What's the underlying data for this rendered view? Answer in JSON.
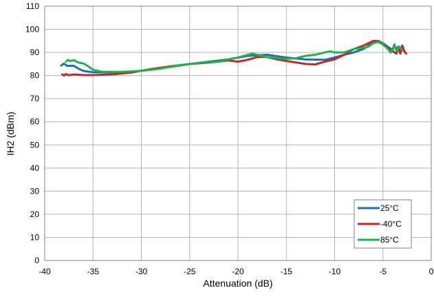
{
  "chart_data": {
    "type": "line",
    "title": "",
    "xlabel": "Attenuation (dB)",
    "ylabel": "IH2 (dBm)",
    "xlim": [
      -40,
      0
    ],
    "ylim": [
      0,
      110
    ],
    "x_ticks": [
      -40,
      -35,
      -30,
      -25,
      -20,
      -15,
      -10,
      -5,
      0
    ],
    "y_ticks": [
      0,
      10,
      20,
      30,
      40,
      50,
      60,
      70,
      80,
      90,
      100,
      110
    ],
    "grid": true,
    "legend_position": "bottom-right",
    "series": [
      {
        "name": "25°C",
        "color": "#1f6fb5",
        "points": [
          [
            -38.3,
            84.3
          ],
          [
            -38.0,
            85.2
          ],
          [
            -37.7,
            84.2
          ],
          [
            -37.0,
            84.2
          ],
          [
            -36.5,
            83.0
          ],
          [
            -36.0,
            82.0
          ],
          [
            -35.0,
            81.4
          ],
          [
            -33.0,
            81.3
          ],
          [
            -31.0,
            81.6
          ],
          [
            -29.0,
            82.6
          ],
          [
            -27.0,
            83.7
          ],
          [
            -25.0,
            85.0
          ],
          [
            -23.0,
            86.0
          ],
          [
            -21.0,
            87.0
          ],
          [
            -19.0,
            88.5
          ],
          [
            -17.0,
            89.0
          ],
          [
            -15.0,
            87.8
          ],
          [
            -13.0,
            87.0
          ],
          [
            -11.0,
            86.8
          ],
          [
            -10.0,
            87.8
          ],
          [
            -9.0,
            89.0
          ],
          [
            -8.0,
            90.0
          ],
          [
            -7.0,
            91.5
          ],
          [
            -6.5,
            93.0
          ],
          [
            -6.0,
            94.8
          ],
          [
            -5.5,
            95.0
          ],
          [
            -5.0,
            94.0
          ],
          [
            -4.5,
            92.5
          ],
          [
            -4.0,
            91.0
          ],
          [
            -3.8,
            93.0
          ],
          [
            -3.6,
            91.5
          ],
          [
            -3.4,
            92.5
          ],
          [
            -3.2,
            90.5
          ],
          [
            -3.0,
            91.0
          ],
          [
            -2.8,
            91.0
          ]
        ]
      },
      {
        "name": "-40°C",
        "color": "#c0282d",
        "points": [
          [
            -38.2,
            80.5
          ],
          [
            -38.0,
            80.0
          ],
          [
            -37.8,
            80.7
          ],
          [
            -37.5,
            80.1
          ],
          [
            -37.0,
            80.5
          ],
          [
            -36.0,
            80.2
          ],
          [
            -35.0,
            80.2
          ],
          [
            -33.0,
            80.5
          ],
          [
            -31.0,
            81.3
          ],
          [
            -29.0,
            82.8
          ],
          [
            -27.0,
            84.0
          ],
          [
            -25.0,
            85.0
          ],
          [
            -23.0,
            85.6
          ],
          [
            -21.0,
            86.5
          ],
          [
            -20.0,
            86.0
          ],
          [
            -19.0,
            86.8
          ],
          [
            -18.0,
            88.0
          ],
          [
            -17.0,
            88.0
          ],
          [
            -16.0,
            87.0
          ],
          [
            -15.0,
            86.3
          ],
          [
            -13.0,
            85.0
          ],
          [
            -12.0,
            84.8
          ],
          [
            -11.0,
            86.0
          ],
          [
            -10.0,
            87.0
          ],
          [
            -9.0,
            89.0
          ],
          [
            -8.0,
            91.5
          ],
          [
            -7.0,
            93.0
          ],
          [
            -6.5,
            94.0
          ],
          [
            -6.0,
            95.0
          ],
          [
            -5.5,
            94.8
          ],
          [
            -5.0,
            93.5
          ],
          [
            -4.5,
            92.0
          ],
          [
            -4.0,
            90.5
          ],
          [
            -3.6,
            89.5
          ],
          [
            -3.4,
            92.0
          ],
          [
            -3.2,
            89.5
          ],
          [
            -3.0,
            93.0
          ],
          [
            -2.8,
            90.5
          ],
          [
            -2.6,
            89.5
          ]
        ]
      },
      {
        "name": "85°C",
        "color": "#22b04b",
        "points": [
          [
            -37.8,
            86.0
          ],
          [
            -37.6,
            86.8
          ],
          [
            -37.4,
            86.2
          ],
          [
            -37.0,
            86.7
          ],
          [
            -36.5,
            85.6
          ],
          [
            -36.0,
            85.2
          ],
          [
            -35.5,
            84.0
          ],
          [
            -35.0,
            82.5
          ],
          [
            -34.0,
            81.6
          ],
          [
            -32.0,
            81.6
          ],
          [
            -30.0,
            82.0
          ],
          [
            -28.0,
            83.0
          ],
          [
            -26.0,
            84.5
          ],
          [
            -24.0,
            85.5
          ],
          [
            -22.0,
            86.0
          ],
          [
            -21.0,
            87.0
          ],
          [
            -20.0,
            87.8
          ],
          [
            -19.0,
            89.0
          ],
          [
            -18.5,
            89.5
          ],
          [
            -18.0,
            89.0
          ],
          [
            -17.0,
            88.0
          ],
          [
            -16.0,
            87.5
          ],
          [
            -15.0,
            87.2
          ],
          [
            -14.0,
            87.5
          ],
          [
            -13.0,
            88.5
          ],
          [
            -12.0,
            89.0
          ],
          [
            -11.0,
            90.0
          ],
          [
            -10.5,
            90.5
          ],
          [
            -10.0,
            90.0
          ],
          [
            -9.0,
            90.0
          ],
          [
            -8.0,
            91.5
          ],
          [
            -7.0,
            92.0
          ],
          [
            -6.5,
            92.5
          ],
          [
            -6.0,
            94.0
          ],
          [
            -5.5,
            94.5
          ],
          [
            -5.0,
            93.5
          ],
          [
            -4.5,
            91.5
          ],
          [
            -4.2,
            90.0
          ],
          [
            -4.0,
            91.5
          ],
          [
            -3.8,
            93.5
          ],
          [
            -3.6,
            90.5
          ],
          [
            -3.3,
            92.5
          ],
          [
            -3.0,
            91.0
          ]
        ]
      }
    ]
  }
}
